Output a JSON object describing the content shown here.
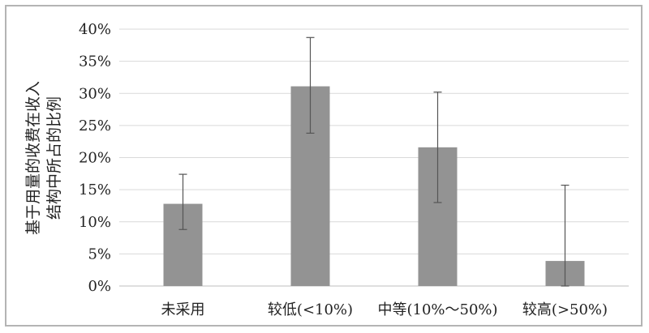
{
  "chart_data": {
    "type": "bar",
    "categories": [
      "未采用",
      "较低(<10%)",
      "中等(10%～50%)",
      "较高(>50%)"
    ],
    "values": [
      12.8,
      31.1,
      21.6,
      3.9
    ],
    "error_bars": [
      {
        "low": 8.8,
        "high": 17.4
      },
      {
        "low": 23.8,
        "high": 38.7
      },
      {
        "low": 13.0,
        "high": 30.2
      },
      {
        "low": 0,
        "high": 15.7
      }
    ],
    "ylabel_lines": [
      "基于用量的收费在收入",
      "结构中所占的比例"
    ],
    "ylim": [
      0,
      40
    ],
    "yticks": [
      "0%",
      "5%",
      "10%",
      "15%",
      "20%",
      "25%",
      "30%",
      "35%",
      "40%"
    ],
    "ytick_values": [
      0,
      5,
      10,
      15,
      20,
      25,
      30,
      35,
      40
    ],
    "grid": true,
    "colors": {
      "bar": "#939393",
      "grid": "#d9d9d9",
      "axis": "#bfbfbf",
      "error": "#555555"
    }
  }
}
